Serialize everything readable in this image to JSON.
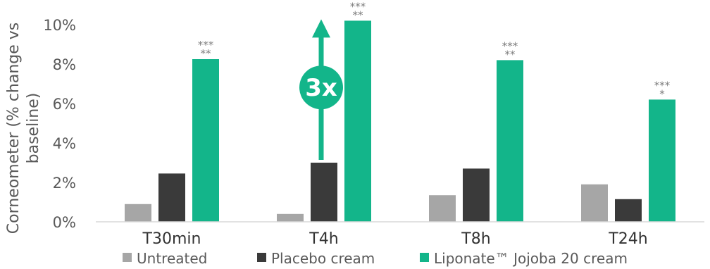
{
  "chart_data": {
    "type": "bar",
    "ylabel_line1": "Corneometer (% change vs",
    "ylabel_line2": "baseline)",
    "categories": [
      "T30min",
      "T4h",
      "T8h",
      "T24h"
    ],
    "yticks": [
      "0%",
      "2%",
      "4%",
      "6%",
      "8%",
      "10%"
    ],
    "ylim": [
      0,
      10
    ],
    "series": [
      {
        "name": "Untreated",
        "color": "#a6a6a6",
        "values": [
          0.9,
          0.4,
          1.35,
          1.9
        ]
      },
      {
        "name": "Placebo cream",
        "color": "#3a3a3a",
        "values": [
          2.45,
          3.0,
          2.7,
          1.15
        ]
      },
      {
        "name": "Liponate™ Jojoba 20 cream",
        "color": "#13b58a",
        "values": [
          8.25,
          10.2,
          8.2,
          6.2
        ]
      }
    ],
    "significance": [
      {
        "line1": "***",
        "line2": "**"
      },
      {
        "line1": "***",
        "line2": "**"
      },
      {
        "line1": "***",
        "line2": "**"
      },
      {
        "line1": "***",
        "line2": "*"
      }
    ],
    "annotation": {
      "label": "3x",
      "color": "#13b58a"
    },
    "grid": false,
    "legend_position": "bottom"
  }
}
